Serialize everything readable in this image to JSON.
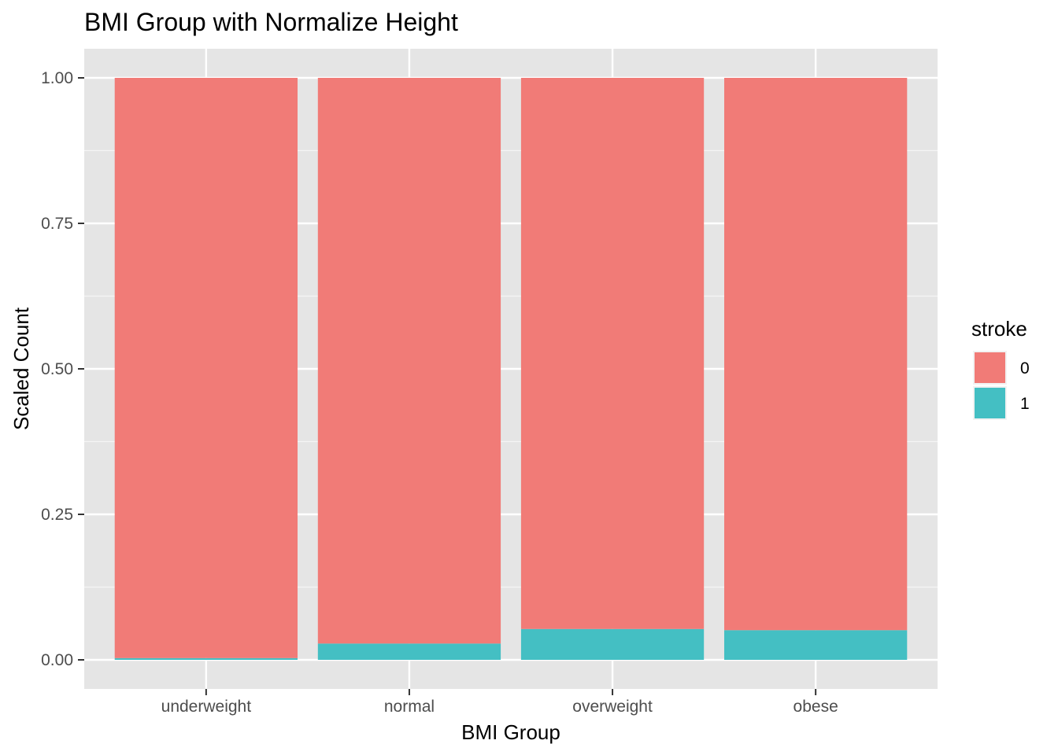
{
  "chart_data": {
    "type": "bar",
    "stacked": true,
    "title": "BMI Group with Normalize Height",
    "xlabel": "BMI Group",
    "ylabel": "Scaled Count",
    "categories": [
      "underweight",
      "normal",
      "overweight",
      "obese"
    ],
    "ylim": [
      -0.05,
      1.05
    ],
    "yticks": [
      0,
      0.25,
      0.5,
      0.75,
      1
    ],
    "ytick_labels": [
      "0.00",
      "0.25",
      "0.50",
      "0.75",
      "1.00"
    ],
    "grid": true,
    "legend": {
      "title": "stroke",
      "placement": "right",
      "entries": [
        {
          "label": "0",
          "color": "#F17B77"
        },
        {
          "label": "1",
          "color": "#44BFC3"
        }
      ]
    },
    "series": [
      {
        "name": "0",
        "color": "#F17B77",
        "values": [
          0.997,
          0.972,
          0.947,
          0.949
        ]
      },
      {
        "name": "1",
        "color": "#44BFC3",
        "values": [
          0.003,
          0.028,
          0.053,
          0.051
        ]
      }
    ]
  }
}
